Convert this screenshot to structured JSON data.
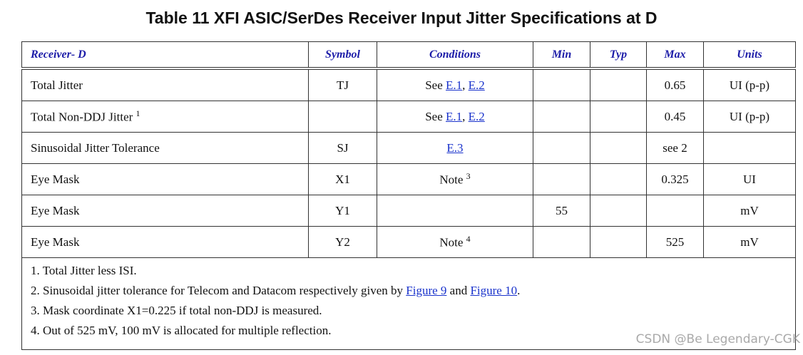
{
  "title": "Table 11  XFI ASIC/SerDes Receiver Input Jitter Specifications at D",
  "table": {
    "header": [
      "Receiver- D",
      "Symbol",
      "Conditions",
      "Min",
      "Typ",
      "Max",
      "Units"
    ],
    "rows": [
      [
        [
          {
            "text": "Total Jitter"
          }
        ],
        "TJ",
        [
          {
            "text": "See "
          },
          {
            "text": "E.1",
            "link": true
          },
          {
            "text": ", "
          },
          {
            "text": "E.2",
            "link": true
          }
        ],
        null,
        null,
        0.65,
        "UI (p-p)"
      ],
      [
        [
          {
            "text": "Total Non-DDJ Jitter "
          },
          {
            "text": "1",
            "sup": true
          }
        ],
        null,
        [
          {
            "text": "See "
          },
          {
            "text": "E.1",
            "link": true
          },
          {
            "text": ", "
          },
          {
            "text": "E.2",
            "link": true
          }
        ],
        null,
        null,
        0.45,
        "UI (p-p)"
      ],
      [
        [
          {
            "text": "Sinusoidal Jitter Tolerance"
          }
        ],
        "SJ",
        [
          {
            "text": "E.3",
            "link": true
          }
        ],
        null,
        null,
        "see 2",
        null
      ],
      [
        [
          {
            "text": "Eye Mask"
          }
        ],
        "X1",
        [
          {
            "text": "Note "
          },
          {
            "text": "3",
            "sup": true
          }
        ],
        null,
        null,
        0.325,
        "UI"
      ],
      [
        [
          {
            "text": "Eye Mask"
          }
        ],
        "Y1",
        null,
        55,
        null,
        null,
        "mV"
      ],
      [
        [
          {
            "text": "Eye Mask"
          }
        ],
        "Y2",
        [
          {
            "text": "Note "
          },
          {
            "text": "4",
            "sup": true
          }
        ],
        null,
        null,
        525,
        "mV"
      ]
    ],
    "notes": [
      [
        {
          "text": "1. Total Jitter less ISI."
        }
      ],
      [
        {
          "text": "2. Sinusoidal jitter tolerance for Telecom and Datacom respectively given by "
        },
        {
          "text": "Figure 9",
          "link": true
        },
        {
          "text": " and "
        },
        {
          "text": "Figure 10",
          "link": true
        },
        {
          "text": "."
        }
      ],
      [
        {
          "text": "3. Mask coordinate X1=0.225 if total non-DDJ is measured."
        }
      ],
      [
        {
          "text": "4. Out of 525 mV, 100 mV is allocated for multiple reflection."
        }
      ]
    ]
  },
  "watermark": "CSDN @Be Legendary-CGK"
}
